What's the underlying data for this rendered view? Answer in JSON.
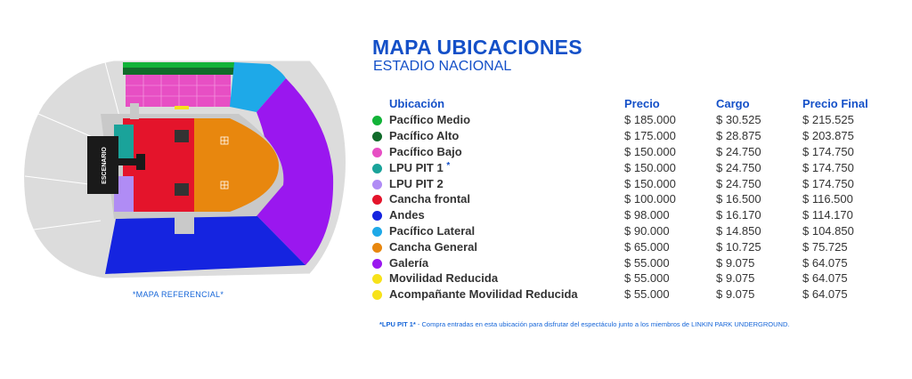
{
  "header": {
    "title": "MAPA UBICACIONES",
    "subtitle": "ESTADIO NACIONAL"
  },
  "map": {
    "stage_label": "ESCENARIO",
    "caption": "*MAPA REFERENCIAL*"
  },
  "table": {
    "headers": {
      "location": "Ubicación",
      "price": "Precio",
      "fee": "Cargo",
      "final": "Precio Final"
    },
    "rows": [
      {
        "name": "Pacífico Medio",
        "color": "#12b338",
        "price": "$ 185.000",
        "fee": "$ 30.525",
        "final": "$ 215.525"
      },
      {
        "name": "Pacífico Alto",
        "color": "#116b2a",
        "price": "$ 175.000",
        "fee": "$ 28.875",
        "final": "$ 203.875"
      },
      {
        "name": "Pacífico Bajo",
        "color": "#e74fc4",
        "price": "$ 150.000",
        "fee": "$ 24.750",
        "final": "$ 174.750"
      },
      {
        "name": "LPU PIT 1",
        "color": "#1aa39a",
        "price": "$ 150.000",
        "fee": "$ 24.750",
        "final": "$ 174.750",
        "mark": "*"
      },
      {
        "name": "LPU PIT 2",
        "color": "#b08cf5",
        "price": "$ 150.000",
        "fee": "$ 24.750",
        "final": "$ 174.750"
      },
      {
        "name": "Cancha frontal",
        "color": "#e4142b",
        "price": "$ 100.000",
        "fee": "$ 16.500",
        "final": "$ 116.500"
      },
      {
        "name": "Andes",
        "color": "#1524e0",
        "price": "$ 98.000",
        "fee": "$ 16.170",
        "final": "$ 114.170"
      },
      {
        "name": "Pacífico Lateral",
        "color": "#1ea9e8",
        "price": "$ 90.000",
        "fee": "$ 14.850",
        "final": "$ 104.850"
      },
      {
        "name": "Cancha General",
        "color": "#e8870e",
        "price": "$ 65.000",
        "fee": "$ 10.725",
        "final": "$ 75.725"
      },
      {
        "name": "Galería",
        "color": "#9a17ef",
        "price": "$ 55.000",
        "fee": "$ 9.075",
        "final": "$ 64.075"
      },
      {
        "name": "Movilidad Reducida",
        "color": "#f7e21a",
        "price": "$ 55.000",
        "fee": "$ 9.075",
        "final": "$ 64.075"
      },
      {
        "name": "Acompañante Movilidad Reducida",
        "color": "#f7e21a",
        "price": "$ 55.000",
        "fee": "$ 9.075",
        "final": "$ 64.075"
      }
    ]
  },
  "footnote": {
    "label": "*LPU PIT 1*",
    "text": " - Compra entradas en esta ubicación para disfrutar del espectáculo junto a los miembros de LINKIN PARK UNDERGROUND."
  }
}
